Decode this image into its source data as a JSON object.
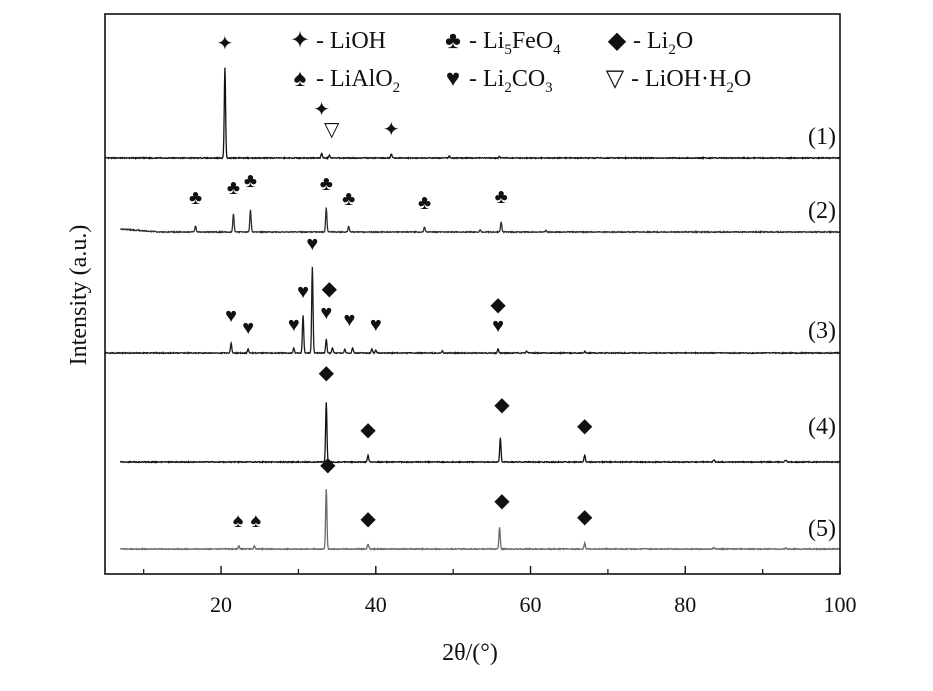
{
  "chart_data": {
    "type": "line",
    "xlabel": "2θ/(°)",
    "ylabel": "Intensity (a.u.)",
    "xlim": [
      5,
      100
    ],
    "xticks": [
      20,
      40,
      60,
      80,
      100
    ],
    "xticks_minor": [
      10,
      30,
      50,
      70,
      90
    ],
    "legend": [
      {
        "marker": "✦",
        "parts": [
          {
            "t": "- LiOH"
          }
        ]
      },
      {
        "marker": "♣",
        "parts": [
          {
            "t": "- Li"
          },
          {
            "t": "5",
            "sub": true
          },
          {
            "t": "FeO"
          },
          {
            "t": "4",
            "sub": true
          }
        ]
      },
      {
        "marker": "◆",
        "parts": [
          {
            "t": "- Li"
          },
          {
            "t": "2",
            "sub": true
          },
          {
            "t": "O"
          }
        ]
      },
      {
        "marker": "♠",
        "parts": [
          {
            "t": "- LiAlO"
          },
          {
            "t": "2",
            "sub": true
          }
        ]
      },
      {
        "marker": "♥",
        "parts": [
          {
            "t": "- Li"
          },
          {
            "t": "2",
            "sub": true
          },
          {
            "t": "CO"
          },
          {
            "t": "3",
            "sub": true
          }
        ]
      },
      {
        "marker": "▽",
        "parts": [
          {
            "t": "- LiOH"
          },
          {
            "t": "·",
            "sep": true
          },
          {
            "t": "H"
          },
          {
            "t": "2",
            "sub": true
          },
          {
            "t": "O"
          }
        ]
      }
    ],
    "series": [
      {
        "name": "(1)",
        "color": "#111111",
        "peaks": [
          [
            20.5,
            90
          ],
          [
            33.0,
            5
          ],
          [
            34.0,
            3
          ],
          [
            42.0,
            4
          ],
          [
            49.5,
            2
          ],
          [
            56.0,
            1.5
          ]
        ],
        "markers": [
          {
            "x": 20.5,
            "h": 108,
            "s": "✦"
          },
          {
            "x": 33.0,
            "h": 42,
            "s": "✦"
          },
          {
            "x": 34.3,
            "h": 22,
            "s": "▽"
          },
          {
            "x": 42.0,
            "h": 22,
            "s": "✦"
          }
        ]
      },
      {
        "name": "(2)",
        "color": "#2e2e2e",
        "peaks": [
          [
            16.7,
            6
          ],
          [
            21.6,
            18
          ],
          [
            23.8,
            22
          ],
          [
            33.6,
            24
          ],
          [
            36.5,
            6
          ],
          [
            46.3,
            5
          ],
          [
            56.2,
            10
          ],
          [
            53.5,
            2
          ],
          [
            62.0,
            1.5
          ]
        ],
        "markers": [
          {
            "x": 16.7,
            "h": 28,
            "s": "♣"
          },
          {
            "x": 21.6,
            "h": 38,
            "s": "♣"
          },
          {
            "x": 23.8,
            "h": 45,
            "s": "♣"
          },
          {
            "x": 33.6,
            "h": 42,
            "s": "♣"
          },
          {
            "x": 36.5,
            "h": 27,
            "s": "♣"
          },
          {
            "x": 46.3,
            "h": 23,
            "s": "♣"
          },
          {
            "x": 56.2,
            "h": 29,
            "s": "♣"
          }
        ]
      },
      {
        "name": "(3)",
        "color": "#1a1a1a",
        "peaks": [
          [
            21.3,
            10
          ],
          [
            23.5,
            4
          ],
          [
            29.4,
            5
          ],
          [
            30.6,
            38
          ],
          [
            31.8,
            86
          ],
          [
            33.6,
            14
          ],
          [
            34.4,
            5
          ],
          [
            36.0,
            4
          ],
          [
            37.0,
            5
          ],
          [
            39.5,
            4
          ],
          [
            40.0,
            3
          ],
          [
            48.6,
            2
          ],
          [
            55.8,
            4
          ],
          [
            59.5,
            2
          ],
          [
            67.0,
            1.5
          ]
        ],
        "markers": [
          {
            "x": 21.3,
            "h": 31,
            "s": "♥"
          },
          {
            "x": 23.5,
            "h": 19,
            "s": "♥"
          },
          {
            "x": 29.4,
            "h": 22,
            "s": "♥"
          },
          {
            "x": 30.6,
            "h": 55,
            "s": "♥"
          },
          {
            "x": 31.8,
            "h": 103,
            "s": "♥"
          },
          {
            "x": 33.6,
            "h": 34,
            "s": "♥"
          },
          {
            "x": 34.0,
            "h": 58,
            "s": "◆"
          },
          {
            "x": 36.6,
            "h": 27,
            "s": "♥"
          },
          {
            "x": 40.0,
            "h": 22,
            "s": "♥"
          },
          {
            "x": 55.8,
            "h": 21,
            "s": "♥"
          },
          {
            "x": 55.8,
            "h": 42,
            "s": "◆"
          }
        ]
      },
      {
        "name": "(4)",
        "color": "#111111",
        "peaks": [
          [
            33.6,
            60
          ],
          [
            39.0,
            7
          ],
          [
            56.1,
            24
          ],
          [
            67.0,
            7
          ],
          [
            83.7,
            2
          ],
          [
            93.0,
            2
          ]
        ],
        "markers": [
          {
            "x": 33.6,
            "h": 83,
            "s": "◆"
          },
          {
            "x": 39.0,
            "h": 26,
            "s": "◆"
          },
          {
            "x": 56.3,
            "h": 51,
            "s": "◆"
          },
          {
            "x": 67.0,
            "h": 30,
            "s": "◆"
          }
        ]
      },
      {
        "name": "(5)",
        "color": "#6a6a6a",
        "peaks": [
          [
            22.3,
            3
          ],
          [
            24.3,
            3
          ],
          [
            33.6,
            60
          ],
          [
            39.0,
            5
          ],
          [
            56.0,
            22
          ],
          [
            67.0,
            6
          ],
          [
            83.7,
            1.5
          ],
          [
            93.0,
            1.5
          ]
        ],
        "markers": [
          {
            "x": 22.2,
            "h": 22,
            "s": "♠"
          },
          {
            "x": 24.5,
            "h": 22,
            "s": "♠"
          },
          {
            "x": 33.8,
            "h": 78,
            "s": "◆"
          },
          {
            "x": 39.0,
            "h": 24,
            "s": "◆"
          },
          {
            "x": 56.3,
            "h": 42,
            "s": "◆"
          },
          {
            "x": 67.0,
            "h": 26,
            "s": "◆"
          }
        ]
      }
    ]
  }
}
